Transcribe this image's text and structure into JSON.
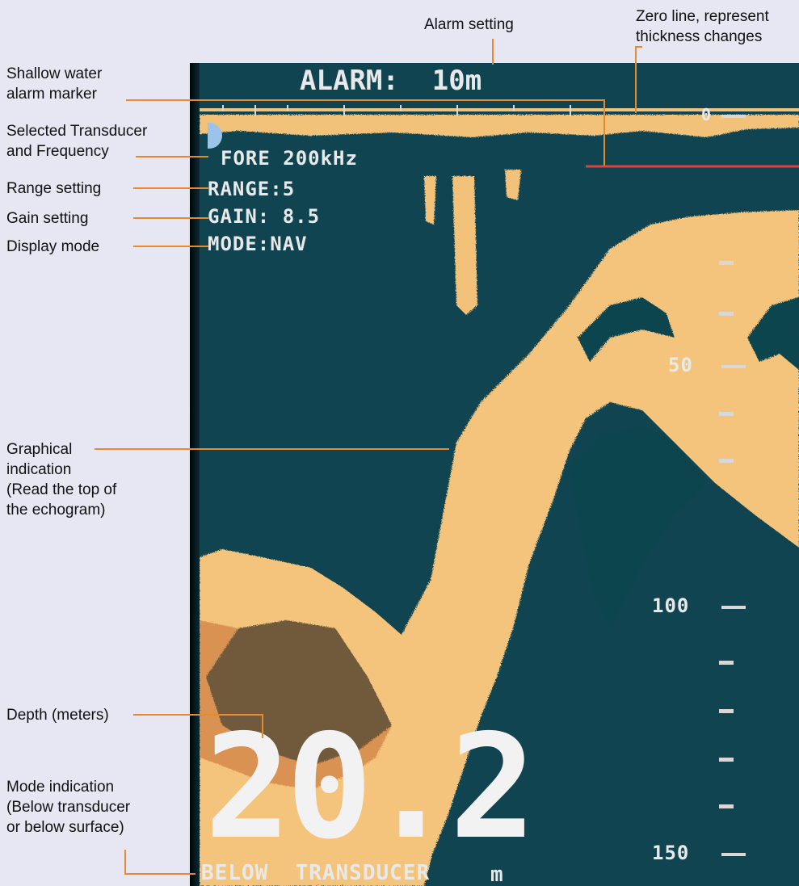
{
  "screen": {
    "alarm_text": "ALARM:  10m",
    "transducer_text": "FORE 200kHz",
    "range_text": "RANGE:5",
    "gain_text": "GAIN: 8.5",
    "mode_text": "MODE:NAV",
    "depth_value": "20.2",
    "mode_indication": "BELOW  TRANSDUCER",
    "depth_unit": "m",
    "scale_top": "0",
    "scale_labels": [
      "50",
      "100",
      "150"
    ]
  },
  "annotations": {
    "alarm_setting": "Alarm setting",
    "zero_line": "Zero line, represent\nthickness changes",
    "shallow_alarm": "Shallow water\nalarm marker",
    "transducer_freq": "Selected Transducer\nand Frequency",
    "range_setting": "Range setting",
    "gain_setting": "Gain setting",
    "display_mode": "Display mode",
    "graphical_indication": "Graphical\nindication\n(Read the top of\nthe echogram)",
    "depth_meters": "Depth (meters)",
    "mode_indication": "Mode indication\n(Below transducer\nor below surface)"
  },
  "colors": {
    "background": "#e6e7f3",
    "screen": "#0f4450",
    "echo": "#f4c47c",
    "echo_edge": "#c46a2e",
    "leader": "#e58a2f",
    "alarm_marker": "#d9453a",
    "text": "#e9e9e9"
  }
}
